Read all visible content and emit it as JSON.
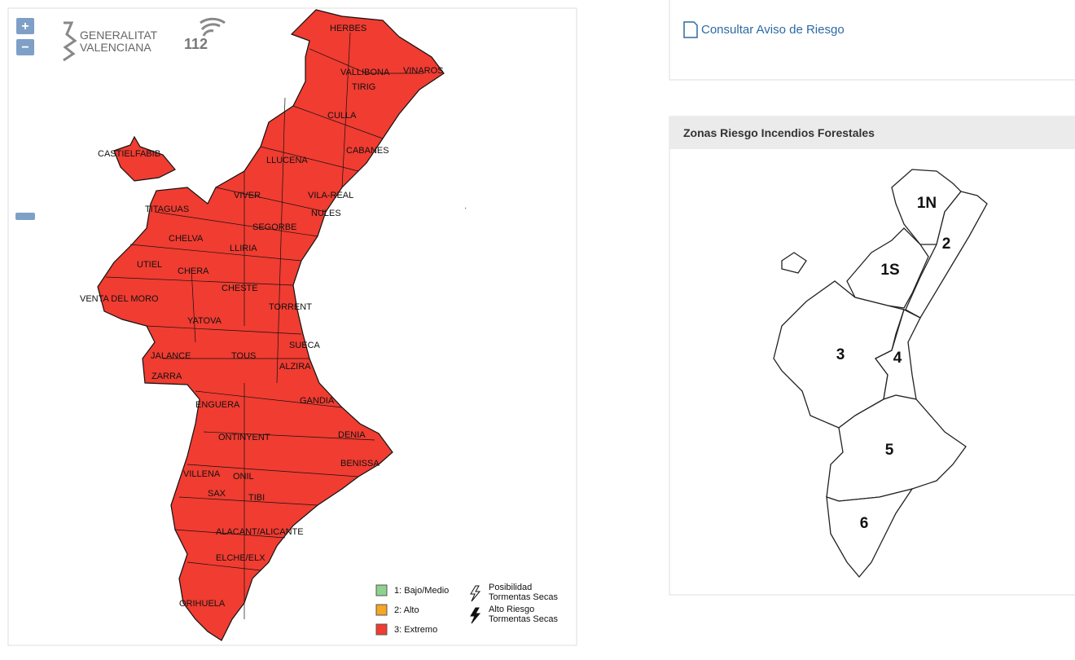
{
  "map_controls": {
    "zoom_in": "+",
    "zoom_out": "−"
  },
  "logos": {
    "generalitat": [
      "GENERALITAT",
      "VALENCIANA"
    ],
    "phone": "112"
  },
  "risk_map": {
    "place_labels": [
      "HERBES",
      "VALLIBONA",
      "VINAROS",
      "TIRIG",
      "CULLA",
      "CABANES",
      "LLUCENA",
      "CASTIELFABIB",
      "VIVER",
      "VILA-REAL",
      "NULES",
      "TITAGUAS",
      "SEGORBE",
      "CHELVA",
      "LLIRIA",
      "UTIEL",
      "CHERA",
      "CHESTE",
      "VENTA DEL MORO",
      "TORRENT",
      "YATOVA",
      "JALANCE",
      "TOUS",
      "SUECA",
      "ALZIRA",
      "ZARRA",
      "ENGUERA",
      "GANDIA",
      "ONTINYENT",
      "DENIA",
      "VILLENA",
      "ONIL",
      "BENISSA",
      "SAX",
      "TIBI",
      "ALACANT/ALICANTE",
      "ELCHE/ELX",
      "ORIHUELA"
    ],
    "legend": [
      "1: Bajo/Medio",
      "2: Alto",
      "3: Extremo"
    ],
    "storm_legend": [
      [
        "Posibilidad",
        "Tormentas Secas"
      ],
      [
        "Alto Riesgo",
        "Tormentas Secas"
      ]
    ]
  },
  "risk_notice": {
    "link": "Consultar Aviso de Riesgo"
  },
  "zones_panel": {
    "title": "Zonas Riesgo Incendios Forestales",
    "zones": [
      "1N",
      "2",
      "1S",
      "3",
      "4",
      "5",
      "6"
    ]
  }
}
